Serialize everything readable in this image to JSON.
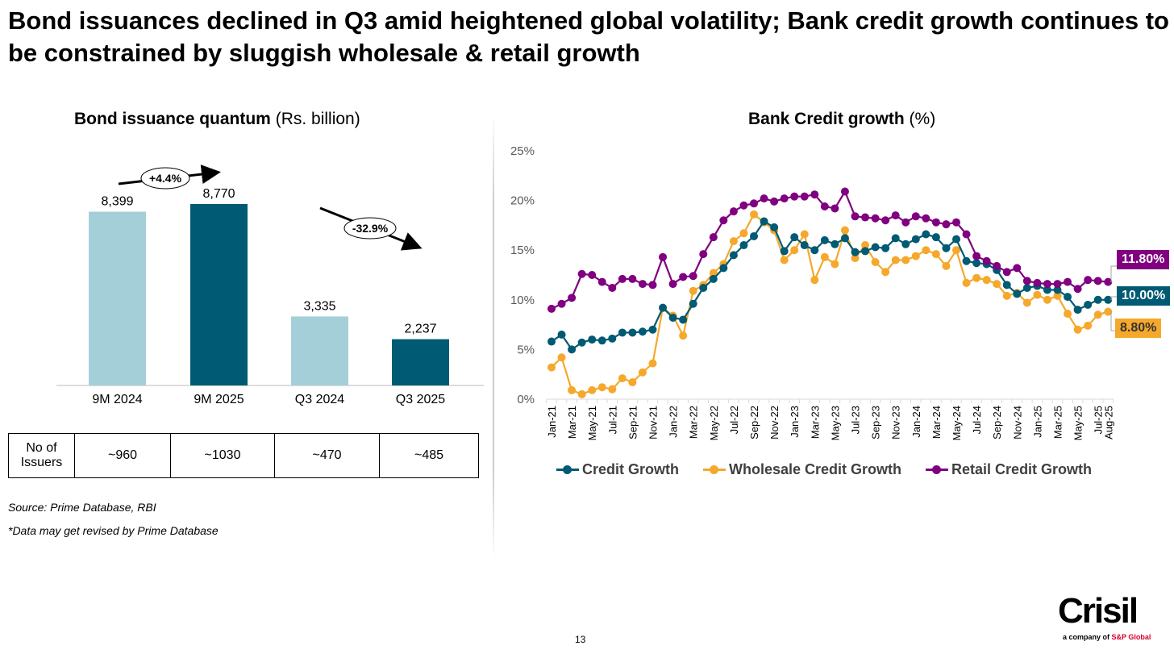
{
  "title": "Bond issuances declined in Q3 amid heightened global volatility; Bank credit growth continues to be constrained by sluggish wholesale & retail growth",
  "page_number": "13",
  "logo": {
    "name": "Crisil",
    "tagline": "a company of",
    "parent": "S&P Global"
  },
  "source": "Source: Prime Database, RBI",
  "note": "*Data may get revised by Prime Database",
  "issuers_table": {
    "header": "No of Issuers",
    "values": [
      "~960",
      "~1030",
      "~470",
      "~485"
    ]
  },
  "chart_data": [
    {
      "type": "bar",
      "title": "Bond issuance quantum",
      "title_unit": "(Rs. billion)",
      "categories": [
        "9M 2024",
        "9M 2025",
        "Q3 2024",
        "Q3 2025"
      ],
      "values": [
        8399,
        8770,
        3335,
        2237
      ],
      "value_labels": [
        "8,399",
        "8,770",
        "3,335",
        "2,237"
      ],
      "colors": [
        "#A5CFD8",
        "#005A73",
        "#A5CFD8",
        "#005A73"
      ],
      "annotations": [
        "+4.4%",
        "-32.9%"
      ]
    },
    {
      "type": "line",
      "title": "Bank Credit growth",
      "title_unit": "(%)",
      "ylim": [
        0,
        25
      ],
      "yticks": [
        "0%",
        "5%",
        "10%",
        "15%",
        "20%",
        "25%"
      ],
      "xtick_labels": [
        "Jan-21",
        "Mar-21",
        "May-21",
        "Jul-21",
        "Sep-21",
        "Nov-21",
        "Jan-22",
        "Mar-22",
        "May-22",
        "Jul-22",
        "Sep-22",
        "Nov-22",
        "Jan-23",
        "Mar-23",
        "May-23",
        "Jul-23",
        "Sep-23",
        "Nov-23",
        "Jan-24",
        "Mar-24",
        "May-24",
        "Jul-24",
        "Sep-24",
        "Nov-24",
        "Jan-25",
        "Mar-25",
        "May-25",
        "Jul-25",
        "Aug-25"
      ],
      "series": [
        {
          "name": "Credit Growth",
          "color": "#005A73",
          "end_label": "10.00%",
          "values": [
            5.8,
            6.5,
            5.0,
            5.7,
            6.0,
            5.9,
            6.1,
            6.7,
            6.7,
            6.8,
            7.0,
            9.2,
            8.2,
            8.0,
            9.6,
            11.2,
            12.1,
            13.2,
            14.5,
            15.5,
            16.4,
            17.9,
            17.3,
            14.9,
            16.3,
            15.5,
            15.0,
            16.0,
            15.6,
            16.2,
            14.8,
            14.9,
            15.3,
            15.2,
            16.2,
            15.6,
            16.1,
            16.6,
            16.3,
            15.2,
            16.1,
            13.9,
            13.7,
            13.6,
            13.0,
            11.5,
            10.6,
            11.2,
            11.4,
            11.0,
            11.0,
            10.3,
            9.0,
            9.5,
            10.0,
            10.0
          ]
        },
        {
          "name": "Wholesale Credit Growth",
          "color": "#F5A82B",
          "end_label": "8.80%",
          "values": [
            3.2,
            4.2,
            0.9,
            0.5,
            0.9,
            1.2,
            1.0,
            2.1,
            1.7,
            2.7,
            3.6,
            9.2,
            8.4,
            6.4,
            10.9,
            11.5,
            12.7,
            13.6,
            15.9,
            16.7,
            18.6,
            17.8,
            17.0,
            14.0,
            15.0,
            16.6,
            12.0,
            14.3,
            13.6,
            17.0,
            14.2,
            15.5,
            13.8,
            12.8,
            14.0,
            14.0,
            14.4,
            15.0,
            14.6,
            13.4,
            15.0,
            11.7,
            12.2,
            12.0,
            11.6,
            10.4,
            10.7,
            9.7,
            10.5,
            10.0,
            10.4,
            8.6,
            7.0,
            7.4,
            8.5,
            8.8
          ]
        },
        {
          "name": "Retail Credit Growth",
          "color": "#800080",
          "end_label": "11.80%",
          "values": [
            9.1,
            9.6,
            10.2,
            12.6,
            12.5,
            11.8,
            11.2,
            12.1,
            12.1,
            11.6,
            11.5,
            14.3,
            11.6,
            12.3,
            12.4,
            14.6,
            16.3,
            18.0,
            18.9,
            19.5,
            19.7,
            20.2,
            19.9,
            20.2,
            20.4,
            20.4,
            20.6,
            19.4,
            19.2,
            20.9,
            18.4,
            18.3,
            18.2,
            18.0,
            18.5,
            17.8,
            18.4,
            18.2,
            17.8,
            17.6,
            17.8,
            16.6,
            14.4,
            13.9,
            13.4,
            12.8,
            13.2,
            11.9,
            11.7,
            11.6,
            11.6,
            11.8,
            11.1,
            12.0,
            11.9,
            11.8
          ]
        }
      ],
      "legend": "bottom"
    }
  ]
}
